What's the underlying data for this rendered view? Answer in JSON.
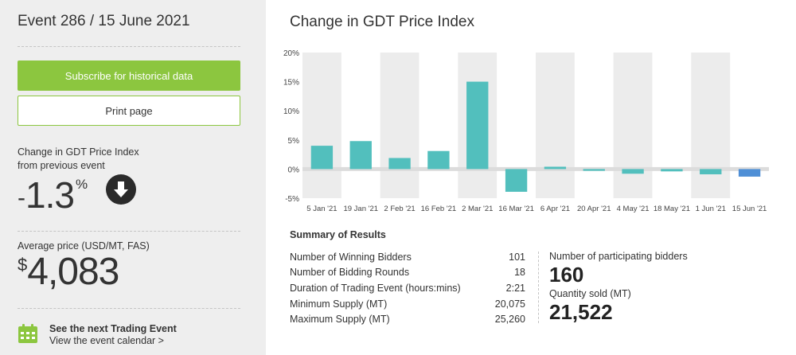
{
  "sidebar": {
    "event_title": "Event 286 / 15 June 2021",
    "subscribe_label": "Subscribe for historical data",
    "print_label": "Print page",
    "change_label_line1": "Change in GDT Price Index",
    "change_label_line2": "from previous event",
    "change_sign": "-",
    "change_value": "1.3",
    "change_unit": "%",
    "change_direction_icon": "arrow-down-circle-icon",
    "avg_label": "Average price (USD/MT, FAS)",
    "avg_currency": "$",
    "avg_value": "4,083",
    "next_event_title": "See the next Trading Event",
    "next_event_link": "View the event calendar >",
    "calendar_icon": "calendar-icon",
    "accent_color": "#8cc63f"
  },
  "chart_data": {
    "type": "bar",
    "title": "Change in GDT Price Index",
    "categories": [
      "5 Jan '21",
      "19 Jan '21",
      "2 Feb '21",
      "16 Feb '21",
      "2 Mar '21",
      "16 Mar '21",
      "6 Apr '21",
      "20 Apr '21",
      "4 May '21",
      "18 May '21",
      "1 Jun '21",
      "15 Jun '21"
    ],
    "values": [
      4.0,
      4.8,
      1.9,
      3.1,
      15.0,
      -3.9,
      0.4,
      -0.3,
      -0.8,
      -0.4,
      -0.9,
      -1.3
    ],
    "yticks": [
      "20%",
      "15%",
      "10%",
      "5%",
      "0%",
      "-5%"
    ],
    "ylim": [
      -5,
      20
    ],
    "grid": false,
    "bar_color": "#52bfbd",
    "highlight_color": "#4f8fd6",
    "highlight_index": 11,
    "column_background": "#ececec"
  },
  "summary": {
    "title": "Summary of Results",
    "rows": [
      {
        "label": "Number of Winning Bidders",
        "value": "101"
      },
      {
        "label": "Number of Bidding Rounds",
        "value": "18"
      },
      {
        "label": "Duration of Trading Event (hours:mins)",
        "value": "2:21"
      },
      {
        "label": "Minimum Supply (MT)",
        "value": "20,075"
      },
      {
        "label": "Maximum Supply (MT)",
        "value": "25,260"
      }
    ],
    "participants_label": "Number of participating bidders",
    "participants_value": "160",
    "quantity_label": "Quantity sold (MT)",
    "quantity_value": "21,522"
  }
}
